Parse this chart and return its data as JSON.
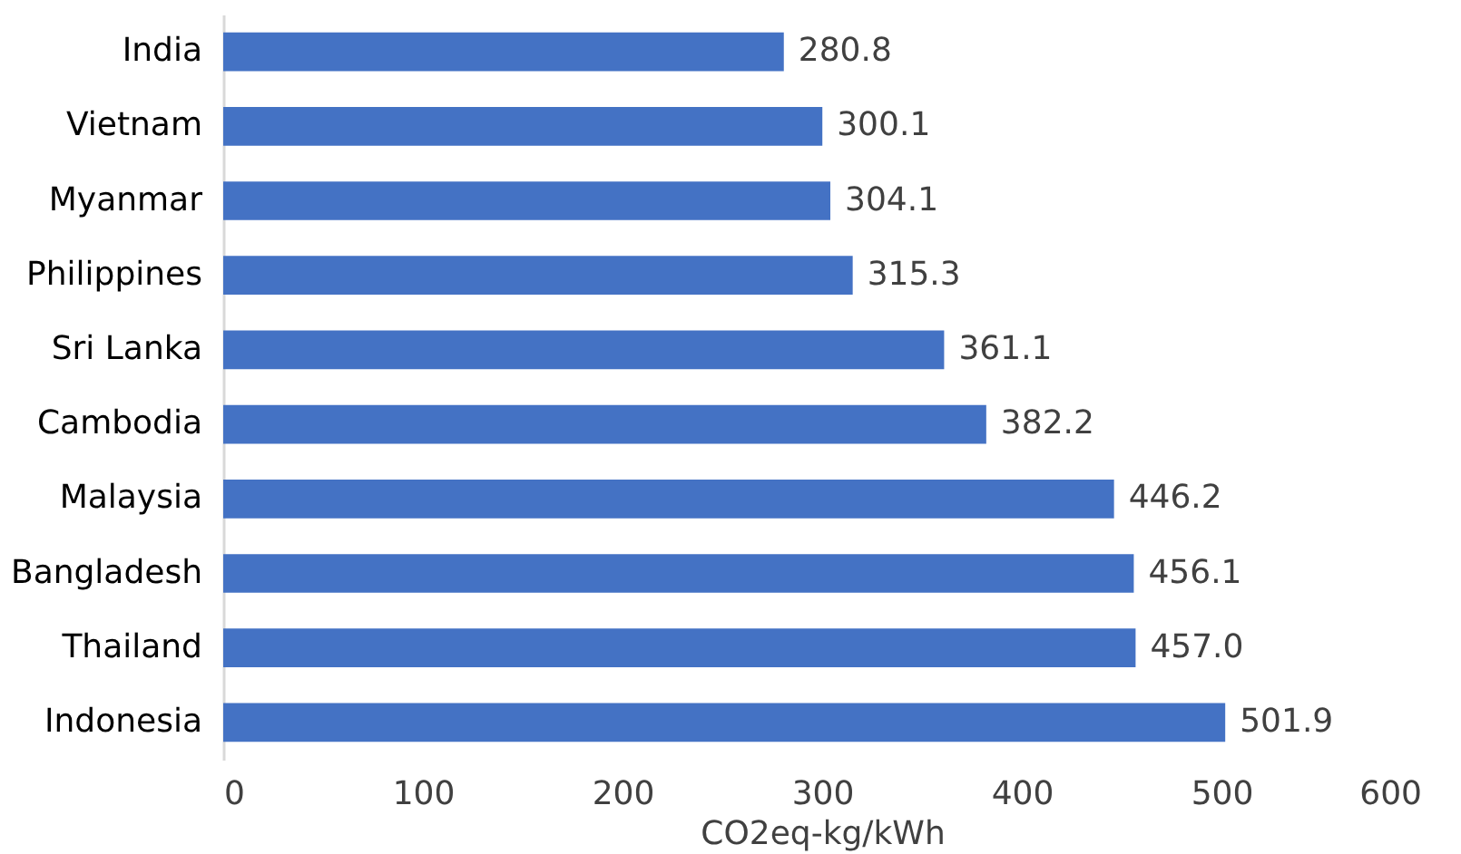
{
  "chart_data": {
    "type": "bar",
    "orientation": "horizontal",
    "xlabel": "CO2eq-kg/kWh",
    "categories": [
      "India",
      "Vietnam",
      "Myanmar",
      "Philippines",
      "Sri Lanka",
      "Cambodia",
      "Malaysia",
      "Bangladesh",
      "Thailand",
      "Indonesia"
    ],
    "values": [
      280.8,
      300.1,
      304.1,
      315.3,
      361.1,
      382.2,
      446.2,
      456.1,
      457.0,
      501.9
    ],
    "value_labels": [
      "280.8",
      "300.1",
      "304.1",
      "315.3",
      "361.1",
      "382.2",
      "446.2",
      "456.1",
      "457.0",
      "501.9"
    ],
    "color": "#4472c4",
    "xlim": [
      0,
      600
    ],
    "xticks": [
      0,
      100,
      200,
      300,
      400,
      500,
      600
    ],
    "data_labels": true,
    "grid": false
  }
}
